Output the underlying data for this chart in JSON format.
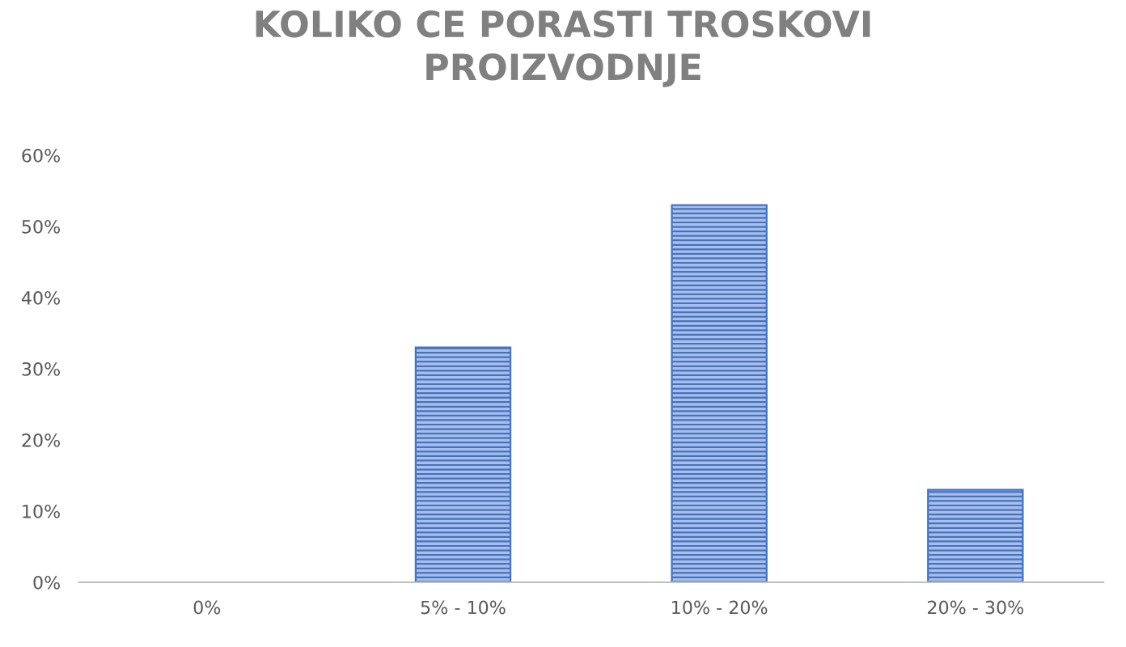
{
  "chart_data": {
    "type": "bar",
    "title": "KOLIKO CE PORASTI TROSKOVI\nPROIZVODNJE",
    "categories": [
      "0%",
      "5% - 10%",
      "10% - 20%",
      "20% - 30%"
    ],
    "values": [
      0,
      33,
      53,
      13
    ],
    "color": "#4472c4",
    "ylim": [
      0,
      60
    ],
    "yticks": [
      {
        "value": 0,
        "label": "0%"
      },
      {
        "value": 10,
        "label": "10%"
      },
      {
        "value": 20,
        "label": "20%"
      },
      {
        "value": 30,
        "label": "30%"
      },
      {
        "value": 40,
        "label": "40%"
      },
      {
        "value": 50,
        "label": "50%"
      },
      {
        "value": 60,
        "label": "60%"
      }
    ],
    "grid": false,
    "legend": false
  }
}
